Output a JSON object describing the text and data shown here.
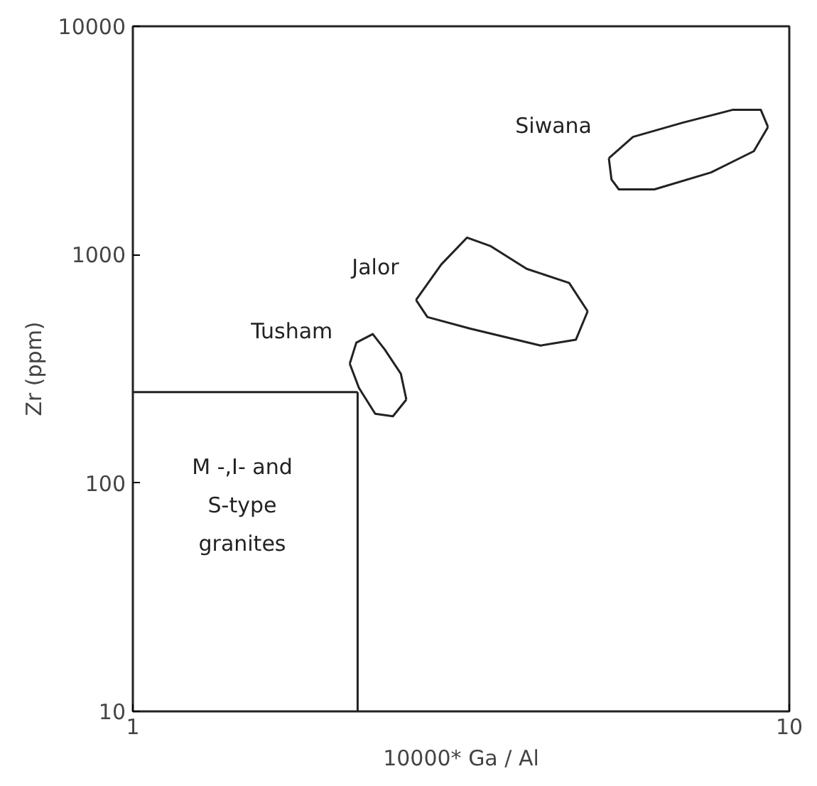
{
  "chart_data": {
    "type": "line",
    "xlabel": "10000* Ga / Al",
    "ylabel": "Zr (ppm)",
    "log": "xy",
    "xlim": [
      1,
      10
    ],
    "ylim": [
      10,
      10000
    ],
    "xticks": [
      1,
      10
    ],
    "yticks": [
      10,
      100,
      1000,
      10000
    ],
    "grid": false,
    "marker": "none",
    "line_style": "solid",
    "series": [
      {
        "name": "Siwana",
        "color": "#222222",
        "x": [
          5.31,
          5.78,
          6.88,
          8.19,
          9.05,
          9.28
        ],
        "values": [
          2644,
          3279,
          3784,
          4305,
          4305,
          3623
        ]
      },
      {
        "color": "#222222",
        "x": [
          5.31,
          5.36,
          5.5,
          6.23,
          7.6,
          8.83,
          9.28
        ],
        "values": [
          2644,
          2134,
          1931,
          1931,
          2291,
          2838,
          3623
        ]
      },
      {
        "name": "Jalor",
        "color": "#222222",
        "x": [
          2.7,
          2.95,
          3.23,
          3.51,
          3.98,
          4.62,
          4.93
        ],
        "values": [
          633,
          906,
          1188,
          1089,
          867,
          752,
          565
        ]
      },
      {
        "color": "#222222",
        "x": [
          2.7,
          2.81,
          3.26,
          4.18,
          4.73,
          4.93
        ],
        "values": [
          633,
          533,
          475,
          400,
          424,
          565
        ]
      },
      {
        "name": "Tusham",
        "color": "#222222",
        "x": [
          2.14,
          2.19,
          2.32,
          2.42,
          2.56,
          2.61
        ],
        "values": [
          333,
          412,
          449,
          384,
          301,
          232
        ]
      },
      {
        "color": "#222222",
        "x": [
          2.14,
          2.21,
          2.34,
          2.49,
          2.61
        ],
        "values": [
          333,
          261,
          201,
          196,
          232
        ]
      },
      {
        "color": "#222222",
        "x": [
          1,
          2.2
        ],
        "values": [
          250,
          250
        ]
      },
      {
        "color": "#222222",
        "x": [
          2.2,
          2.2
        ],
        "values": [
          250,
          10
        ]
      }
    ],
    "annotations": [
      "M -,I- and\nS-type\ngranites"
    ]
  }
}
